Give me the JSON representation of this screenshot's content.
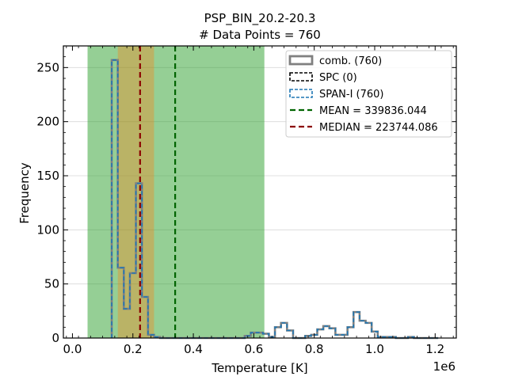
{
  "chart_data": {
    "type": "histogram",
    "title": "PSP_BIN_20.2-20.3",
    "subtitle": "# Data Points = 760",
    "xlabel": "Temperature [K]",
    "ylabel": "Frequency",
    "x_offset_label": "1e6",
    "xlim": [
      -30000,
      1270000
    ],
    "ylim": [
      0,
      270
    ],
    "x_ticks": [
      0,
      200000,
      400000,
      600000,
      800000,
      1000000,
      1200000
    ],
    "x_tick_labels": [
      "0.0",
      "0.2",
      "0.4",
      "0.6",
      "0.8",
      "1.0",
      "1.2"
    ],
    "y_ticks": [
      0,
      50,
      100,
      150,
      200,
      250
    ],
    "y_tick_labels": [
      "0",
      "50",
      "100",
      "150",
      "200",
      "250"
    ],
    "grid": "horizontal",
    "legend_position": "top-right",
    "bin_edges": [
      130000,
      150000,
      170000,
      190000,
      210000,
      230000,
      250000,
      270000,
      290000,
      310000,
      330000,
      350000,
      370000,
      390000,
      410000,
      430000,
      450000,
      470000,
      490000,
      510000,
      530000,
      550000,
      570000,
      590000,
      610000,
      630000,
      650000,
      670000,
      690000,
      710000,
      730000,
      750000,
      770000,
      790000,
      810000,
      830000,
      850000,
      870000,
      890000,
      910000,
      930000,
      950000,
      970000,
      990000,
      1010000,
      1030000,
      1050000,
      1070000,
      1090000,
      1110000,
      1130000,
      1150000,
      1170000,
      1190000,
      1210000
    ],
    "counts": [
      257,
      65,
      27,
      60,
      143,
      38,
      3,
      1,
      0,
      0,
      0,
      0,
      0,
      0,
      0,
      0,
      0,
      0,
      0,
      0,
      0,
      0,
      2,
      5,
      5,
      4,
      1,
      10,
      14,
      7,
      0,
      0,
      2,
      3,
      8,
      11,
      9,
      3,
      3,
      10,
      24,
      16,
      14,
      6,
      1,
      1,
      1,
      0,
      0,
      1,
      0,
      0,
      0,
      0
    ],
    "series": [
      {
        "name": "comb. (760)",
        "style": "solid",
        "color": "#808080"
      },
      {
        "name": "SPC (0)",
        "style": "dashed",
        "color": "#000000"
      },
      {
        "name": "SPAN-I (760)",
        "style": "dashed",
        "color": "#1f77b4"
      }
    ],
    "mean": {
      "label": "MEAN = 339836.044",
      "value": 339836.044,
      "color": "#006400"
    },
    "median": {
      "label": "MEDIAN = 223744.086",
      "value": 223744.086,
      "color": "#8b0000"
    },
    "spans": [
      {
        "x0": 50000,
        "x1": 635000,
        "color": "#2ca02c",
        "opacity": 0.5
      },
      {
        "x0": 150000,
        "x1": 270000,
        "color": "#ff7f0e",
        "opacity": 0.35
      }
    ]
  }
}
